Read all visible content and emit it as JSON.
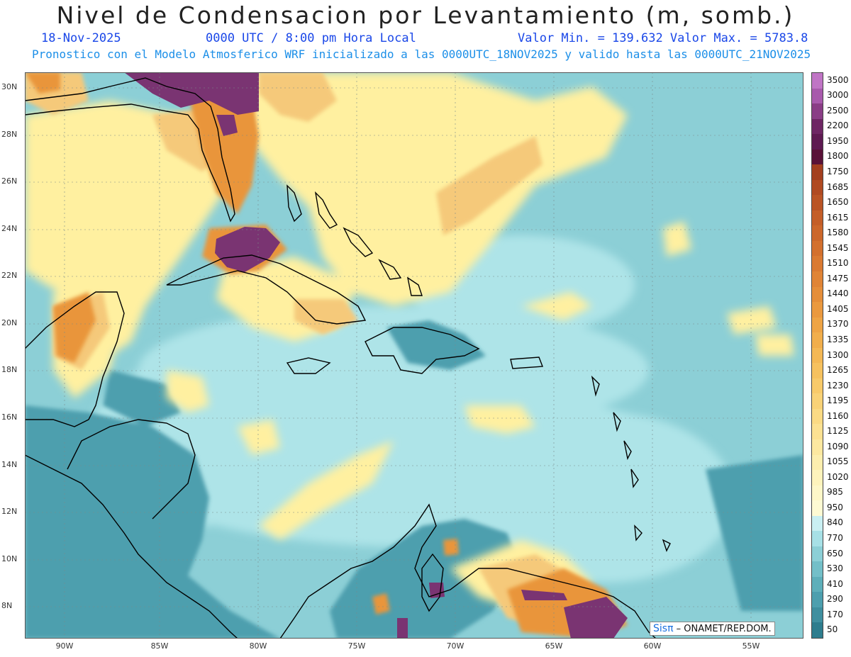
{
  "header": {
    "title": "Nivel de Condensacion por Levantamiento (m, somb.)",
    "date": "18-Nov-2025",
    "time": "0000 UTC / 8:00 pm Hora Local",
    "min_max": "Valor Min. = 139.632  Valor Max. = 5783.8",
    "forecast_line": "Pronostico con el Modelo Atmosferico WRF inicializado a las 0000UTC_18NOV2025 y valido hasta las  0000UTC_21NOV2025"
  },
  "map": {
    "lat_labels": [
      "30N",
      "28N",
      "26N",
      "24N",
      "22N",
      "20N",
      "18N",
      "16N",
      "14N",
      "12N",
      "10N",
      "8N"
    ],
    "lon_labels": [
      "90W",
      "85W",
      "80W",
      "75W",
      "70W",
      "65W",
      "60W",
      "55W"
    ],
    "colors": {
      "ocean": "#8ccfd6",
      "deep": "#4d9fae",
      "light": "#aee4e8",
      "yellow": "#fff0a0",
      "tan": "#f5c97a",
      "orange": "#e9953b",
      "brown": "#b5602a",
      "purple": "#7a3472",
      "violet": "#b26ab8",
      "coast": "#000000",
      "grid": "#7a8a8a"
    }
  },
  "colorbar": {
    "labels": [
      "3500",
      "3000",
      "2500",
      "2200",
      "1950",
      "1800",
      "1750",
      "1685",
      "1650",
      "1615",
      "1580",
      "1545",
      "1510",
      "1475",
      "1440",
      "1405",
      "1370",
      "1335",
      "1300",
      "1265",
      "1230",
      "1195",
      "1160",
      "1125",
      "1090",
      "1055",
      "1020",
      "985",
      "950",
      "840",
      "770",
      "650",
      "530",
      "410",
      "290",
      "170",
      "50"
    ],
    "colors": [
      "#c075c5",
      "#a85aac",
      "#8a3d86",
      "#6e2664",
      "#5e1a52",
      "#5a1238",
      "#a33f1f",
      "#b04a22",
      "#ba5425",
      "#c45e28",
      "#cc672b",
      "#d3702e",
      "#da7a32",
      "#e08436",
      "#e58e3a",
      "#ea993f",
      "#ee a445",
      "#f1ae4c",
      "#f4b855",
      "#f6c15f",
      "#f8ca6a",
      "#f9d277",
      "#fbda84",
      "#fce192",
      "#fde8a0",
      "#fdeeae",
      "#fef3bc",
      "#fef7c8",
      "#fefad3",
      "#c9eff2",
      "#a7e0e6",
      "#8ccfd6",
      "#73bfc8",
      "#5eafba",
      "#4d9fae",
      "#3f8f9f",
      "#2e7d8e"
    ]
  },
  "credit": {
    "brand": "Sisπ",
    "text": "– ONAMET/REP.DOM."
  }
}
